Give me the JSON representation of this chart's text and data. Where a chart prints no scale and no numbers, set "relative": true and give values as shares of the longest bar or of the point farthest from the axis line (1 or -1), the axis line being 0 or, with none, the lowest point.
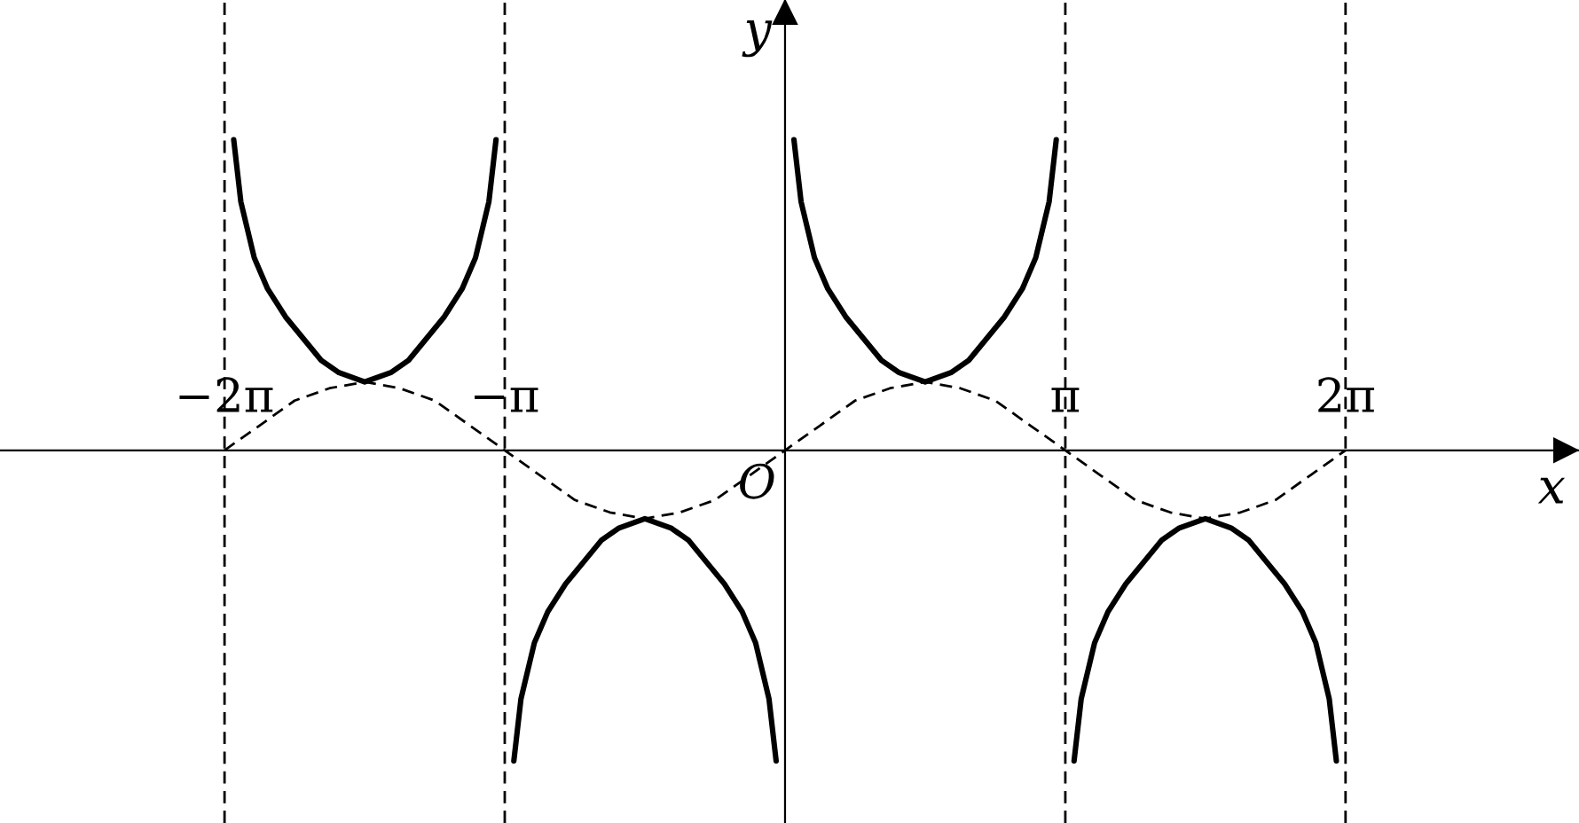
{
  "chart_data": {
    "type": "line",
    "relative": true,
    "xlabel": "x",
    "ylabel": "y",
    "xlim": [
      -8.8,
      8.9
    ],
    "xticks": [
      {
        "value": -6.283,
        "label": "−2π"
      },
      {
        "value": -3.142,
        "label": "−π"
      },
      {
        "value": 3.142,
        "label": "π"
      },
      {
        "value": 6.283,
        "label": "2π"
      }
    ],
    "tick_labels": "x",
    "annotations": [
      {
        "text": "O",
        "x": 0,
        "y": 0
      }
    ],
    "ref_lines": [
      {
        "axis": "x",
        "value": -6.283,
        "color": "#000000",
        "line_style": "dashed"
      },
      {
        "axis": "x",
        "value": -3.142,
        "color": "#000000",
        "line_style": "dashed"
      },
      {
        "axis": "x",
        "value": 3.142,
        "color": "#000000",
        "line_style": "dashed"
      },
      {
        "axis": "x",
        "value": 6.283,
        "color": "#000000",
        "line_style": "dashed"
      }
    ],
    "series": [
      {
        "color": "#000000",
        "line_style": "dashed",
        "x": [
          -6.283,
          -5.89,
          -5.498,
          -5.105,
          -4.712,
          -4.32,
          -3.927,
          -3.534,
          -3.142,
          -2.749,
          -2.356,
          -1.963,
          -1.571,
          -1.178,
          -0.785,
          -0.393,
          0,
          0.393,
          0.785,
          1.178,
          1.571,
          1.963,
          2.356,
          2.749,
          3.142,
          3.534,
          3.927,
          4.32,
          4.712,
          5.105,
          5.498,
          5.89,
          6.283
        ],
        "values": [
          0,
          0.08,
          0.16,
          0.2,
          0.22,
          0.2,
          0.16,
          0.08,
          0,
          -0.08,
          -0.16,
          -0.2,
          -0.22,
          -0.2,
          -0.16,
          -0.08,
          0,
          0.08,
          0.16,
          0.2,
          0.22,
          0.2,
          0.16,
          0.08,
          0,
          -0.08,
          -0.16,
          -0.2,
          -0.22,
          -0.2,
          -0.16,
          -0.08,
          0
        ]
      },
      {
        "color": "#000000",
        "line_style": "solid",
        "x": [
          -6.18,
          -6.1,
          -5.95,
          -5.8,
          -5.6,
          -5.4,
          -5.2,
          -5.0,
          -4.712,
          -4.42,
          -4.22,
          -4.02,
          -3.82,
          -3.62,
          -3.47,
          -3.32,
          -3.24
        ],
        "values": [
          1.0,
          0.8,
          0.62,
          0.52,
          0.43,
          0.36,
          0.29,
          0.25,
          0.22,
          0.25,
          0.29,
          0.36,
          0.43,
          0.52,
          0.62,
          0.8,
          1.0
        ]
      },
      {
        "color": "#000000",
        "line_style": "solid",
        "x": [
          -3.04,
          -2.96,
          -2.81,
          -2.66,
          -2.46,
          -2.26,
          -2.06,
          -1.86,
          -1.571,
          -1.28,
          -1.08,
          -0.88,
          -0.68,
          -0.48,
          -0.33,
          -0.18,
          -0.1
        ],
        "values": [
          -1.0,
          -0.8,
          -0.62,
          -0.52,
          -0.43,
          -0.36,
          -0.29,
          -0.25,
          -0.22,
          -0.25,
          -0.29,
          -0.36,
          -0.43,
          -0.52,
          -0.62,
          -0.8,
          -1.0
        ]
      },
      {
        "color": "#000000",
        "line_style": "solid",
        "x": [
          0.1,
          0.18,
          0.33,
          0.48,
          0.68,
          0.88,
          1.08,
          1.28,
          1.571,
          1.86,
          2.06,
          2.26,
          2.46,
          2.66,
          2.81,
          2.96,
          3.04
        ],
        "values": [
          1.0,
          0.8,
          0.62,
          0.52,
          0.43,
          0.36,
          0.29,
          0.25,
          0.22,
          0.25,
          0.29,
          0.36,
          0.43,
          0.52,
          0.62,
          0.8,
          1.0
        ]
      },
      {
        "color": "#000000",
        "line_style": "solid",
        "x": [
          3.24,
          3.32,
          3.47,
          3.62,
          3.82,
          4.02,
          4.22,
          4.42,
          4.712,
          5.0,
          5.2,
          5.4,
          5.6,
          5.8,
          5.95,
          6.1,
          6.18
        ],
        "values": [
          -1.0,
          -0.8,
          -0.62,
          -0.52,
          -0.43,
          -0.36,
          -0.29,
          -0.25,
          -0.22,
          -0.25,
          -0.29,
          -0.36,
          -0.43,
          -0.52,
          -0.62,
          -0.8,
          -1.0
        ]
      }
    ]
  }
}
